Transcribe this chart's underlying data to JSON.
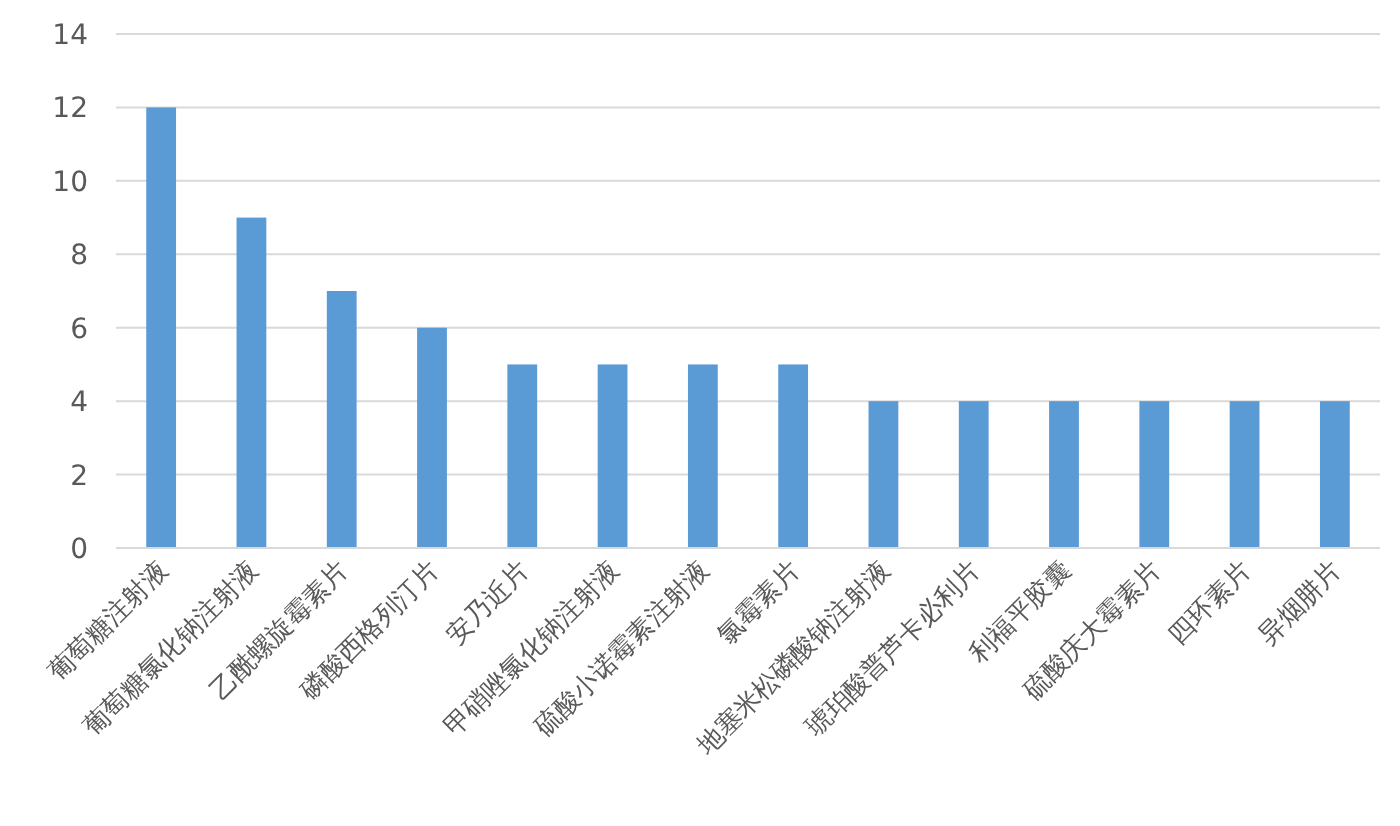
{
  "chart_data": {
    "type": "bar",
    "categories": [
      "葡萄糖注射液",
      "葡萄糖氯化钠注射液",
      "乙酰螺旋霉素片",
      "磷酸西格列汀片",
      "安乃近片",
      "甲硝唑氯化钠注射液",
      "硫酸小诺霉素注射液",
      "氯霉素片",
      "地塞米松磷酸钠注射液",
      "琥珀酸普芦卡必利片",
      "利福平胶囊",
      "硫酸庆大霉素片",
      "四环素片",
      "异烟肼片"
    ],
    "values": [
      12,
      9,
      7,
      6,
      5,
      5,
      5,
      5,
      4,
      4,
      4,
      4,
      4,
      4
    ],
    "color": "#5b9bd5",
    "ylim": [
      0,
      14
    ],
    "yticks": [
      0,
      2,
      4,
      6,
      8,
      10,
      12,
      14
    ],
    "grid": "y"
  }
}
